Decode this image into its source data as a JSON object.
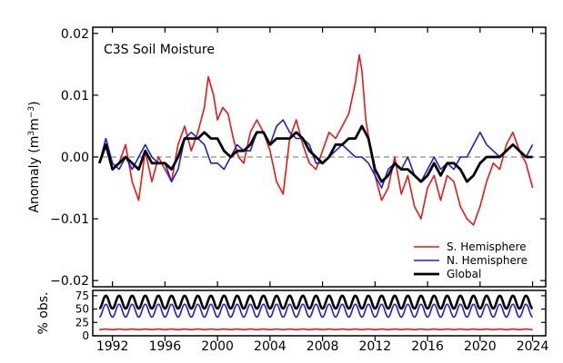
{
  "chart_data": [
    {
      "type": "line",
      "title": "C3S Soil Moisture",
      "ylabel": "Anomaly (m³m⁻³)",
      "ylabel_parts": {
        "main": "Anomaly (m",
        "sup1": "3",
        "mid": "m",
        "sup2": "−3",
        "end": ")"
      },
      "ylim": [
        -0.021,
        0.021
      ],
      "xlim": [
        1990.5,
        2025.0
      ],
      "yticks": [
        -0.02,
        -0.01,
        0.0,
        0.01,
        0.02
      ],
      "ytick_labels": [
        "−0.02",
        "−0.01",
        "0.00",
        "0.01",
        "0.02"
      ],
      "zero_line": {
        "value": 0,
        "color": "#8a8a8a",
        "style": "dashed"
      },
      "legend_position": "lower-right",
      "grid": false,
      "series": [
        {
          "name": "S. Hemisphere",
          "color": "#e31a1c",
          "x": [
            1991.0,
            1991.5,
            1992.0,
            1992.5,
            1993.0,
            1993.5,
            1994.0,
            1994.5,
            1995.0,
            1995.5,
            1996.0,
            1996.5,
            1997.0,
            1997.5,
            1998.0,
            1998.5,
            1999.0,
            1999.3,
            1999.7,
            2000.0,
            2000.4,
            2000.8,
            2001.2,
            2001.6,
            2002.0,
            2002.5,
            2003.0,
            2003.5,
            2004.0,
            2004.5,
            2005.0,
            2005.5,
            2006.0,
            2006.5,
            2007.0,
            2007.5,
            2008.0,
            2008.5,
            2009.0,
            2009.5,
            2010.0,
            2010.5,
            2010.8,
            2011.0,
            2011.3,
            2011.6,
            2012.0,
            2012.5,
            2013.0,
            2013.5,
            2014.0,
            2014.5,
            2015.0,
            2015.5,
            2016.0,
            2016.5,
            2017.0,
            2017.5,
            2018.0,
            2018.5,
            2019.0,
            2019.5,
            2020.0,
            2020.5,
            2021.0,
            2021.5,
            2022.0,
            2022.5,
            2023.0,
            2023.5,
            2024.0
          ],
          "values": [
            -0.001,
            0.002,
            -0.002,
            -0.001,
            0.002,
            -0.004,
            -0.007,
            0.001,
            -0.004,
            0.0,
            -0.002,
            -0.004,
            0.002,
            0.005,
            0.001,
            0.004,
            0.008,
            0.013,
            0.01,
            0.006,
            0.008,
            0.007,
            0.003,
            0.0,
            -0.001,
            0.004,
            0.006,
            0.004,
            0.001,
            -0.004,
            -0.006,
            0.003,
            0.006,
            0.002,
            -0.001,
            -0.002,
            0.001,
            0.004,
            0.003,
            0.005,
            0.007,
            0.012,
            0.0165,
            0.014,
            0.006,
            0.002,
            -0.003,
            -0.007,
            -0.005,
            0.0,
            -0.006,
            -0.003,
            -0.008,
            -0.01,
            -0.005,
            -0.003,
            -0.007,
            -0.003,
            -0.004,
            -0.008,
            -0.01,
            -0.011,
            -0.008,
            -0.004,
            -0.001,
            -0.002,
            0.002,
            0.004,
            0.001,
            -0.001,
            -0.005
          ]
        },
        {
          "name": "N. Hemisphere",
          "color": "#1f1fcc",
          "x": [
            1991.0,
            1991.5,
            1992.0,
            1992.5,
            1993.0,
            1993.5,
            1994.0,
            1994.5,
            1995.0,
            1995.5,
            1996.0,
            1996.5,
            1997.0,
            1997.5,
            1998.0,
            1998.5,
            1999.0,
            1999.5,
            2000.0,
            2000.5,
            2001.0,
            2001.5,
            2002.0,
            2002.5,
            2003.0,
            2003.5,
            2004.0,
            2004.5,
            2005.0,
            2005.5,
            2006.0,
            2006.5,
            2007.0,
            2007.5,
            2008.0,
            2008.5,
            2009.0,
            2009.5,
            2010.0,
            2010.5,
            2011.0,
            2011.5,
            2012.0,
            2012.5,
            2013.0,
            2013.5,
            2014.0,
            2014.5,
            2015.0,
            2015.5,
            2016.0,
            2016.5,
            2017.0,
            2017.5,
            2018.0,
            2018.5,
            2019.0,
            2019.5,
            2020.0,
            2020.5,
            2021.0,
            2021.5,
            2022.0,
            2022.5,
            2023.0,
            2023.5,
            2024.0
          ],
          "values": [
            -0.001,
            0.003,
            -0.001,
            -0.002,
            0.0,
            -0.002,
            0.0,
            0.002,
            0.0,
            -0.001,
            -0.001,
            -0.004,
            -0.002,
            0.003,
            0.004,
            0.003,
            0.002,
            -0.001,
            -0.001,
            -0.002,
            0.0,
            0.002,
            0.001,
            0.001,
            0.004,
            0.004,
            0.002,
            0.005,
            0.006,
            0.004,
            0.003,
            0.003,
            0.002,
            -0.001,
            -0.001,
            0.0,
            0.001,
            0.002,
            0.001,
            0.0,
            0.0,
            -0.001,
            -0.003,
            -0.005,
            -0.002,
            -0.001,
            -0.002,
            0.0,
            -0.003,
            -0.004,
            -0.002,
            0.0,
            -0.002,
            -0.001,
            -0.002,
            0.0,
            0.0,
            0.002,
            0.004,
            0.002,
            0.001,
            0.0,
            0.001,
            0.002,
            0.001,
            0.0,
            0.002
          ]
        },
        {
          "name": "Global",
          "color": "#000000",
          "x": [
            1991.0,
            1991.5,
            1992.0,
            1992.5,
            1993.0,
            1993.5,
            1994.0,
            1994.5,
            1995.0,
            1995.5,
            1996.0,
            1996.5,
            1997.0,
            1997.5,
            1998.0,
            1998.5,
            1999.0,
            1999.5,
            2000.0,
            2000.5,
            2001.0,
            2001.5,
            2002.0,
            2002.5,
            2003.0,
            2003.5,
            2004.0,
            2004.5,
            2005.0,
            2005.5,
            2006.0,
            2006.5,
            2007.0,
            2007.5,
            2008.0,
            2008.5,
            2009.0,
            2009.5,
            2010.0,
            2010.5,
            2011.0,
            2011.5,
            2012.0,
            2012.5,
            2013.0,
            2013.5,
            2014.0,
            2014.5,
            2015.0,
            2015.5,
            2016.0,
            2016.5,
            2017.0,
            2017.5,
            2018.0,
            2018.5,
            2019.0,
            2019.5,
            2020.0,
            2020.5,
            2021.0,
            2021.5,
            2022.0,
            2022.5,
            2023.0,
            2023.5,
            2024.0
          ],
          "values": [
            -0.001,
            0.002,
            -0.002,
            -0.001,
            0.0,
            -0.001,
            -0.002,
            0.001,
            -0.001,
            -0.001,
            -0.001,
            -0.002,
            0.0,
            0.003,
            0.003,
            0.003,
            0.004,
            0.003,
            0.003,
            0.001,
            0.0,
            0.001,
            0.001,
            0.002,
            0.004,
            0.004,
            0.002,
            0.003,
            0.003,
            0.003,
            0.004,
            0.003,
            0.001,
            0.0,
            -0.001,
            0.0,
            0.002,
            0.002,
            0.003,
            0.003,
            0.005,
            0.003,
            -0.002,
            -0.004,
            -0.003,
            -0.001,
            -0.002,
            -0.002,
            -0.003,
            -0.004,
            -0.003,
            -0.001,
            -0.003,
            -0.001,
            -0.001,
            -0.002,
            -0.004,
            -0.003,
            -0.001,
            0.0,
            0.0,
            0.0,
            0.001,
            0.002,
            0.001,
            0.0,
            0.0
          ]
        }
      ]
    },
    {
      "type": "line",
      "ylabel": "% obs.",
      "ylim": [
        0,
        85
      ],
      "yticks": [
        0,
        25,
        50,
        75
      ],
      "ytick_labels": [
        "0",
        "25",
        "50",
        "75"
      ],
      "xticks": [
        1992,
        1996,
        2000,
        2004,
        2008,
        2012,
        2016,
        2020,
        2024
      ],
      "xtick_labels": [
        "1992",
        "1996",
        "2000",
        "2004",
        "2008",
        "2012",
        "2016",
        "2020",
        "2024"
      ],
      "seasonal_cycle": "annual",
      "series": [
        {
          "name": "S. Hemisphere",
          "color": "#e31a1c",
          "mean": 12,
          "amplitude": 0.5
        },
        {
          "name": "N. Hemisphere",
          "color": "#1f1fcc",
          "mean": 47,
          "amplitude": 12
        },
        {
          "name": "Global",
          "color": "#000000",
          "mean": 63,
          "amplitude": 12
        }
      ]
    }
  ]
}
